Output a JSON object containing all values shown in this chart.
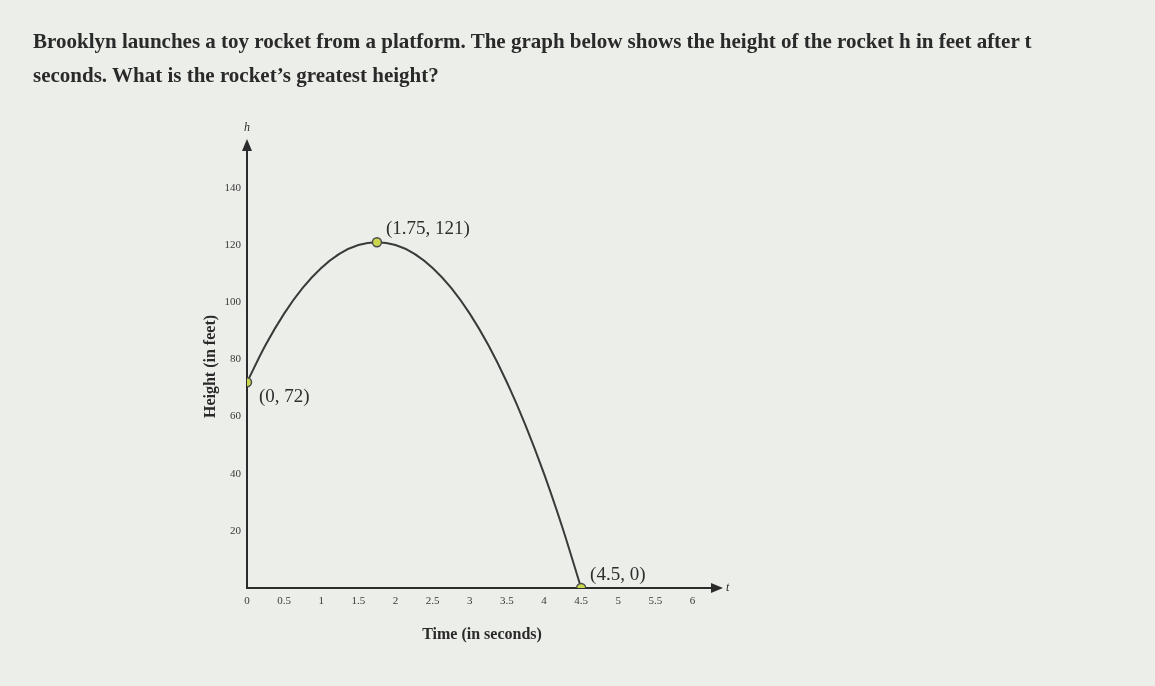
{
  "chart_data": {
    "type": "line",
    "title": "Brooklyn launches a toy rocket from a platform. The graph below shows the height of the rocket h in feet after t seconds. What is the rocket’s greatest height?",
    "xlabel": "Time (in seconds)",
    "ylabel": "Height (in feet)",
    "series": [
      {
        "type": "line",
        "color": "#3a3a3a",
        "marker": "none",
        "x": [
          0,
          0.25,
          0.5,
          0.75,
          1,
          1.25,
          1.5,
          1.75,
          2,
          2.25,
          2.5,
          2.75,
          3,
          3.25,
          3.5,
          3.75,
          4,
          4.25,
          4.5
        ],
        "values": [
          72,
          85,
          96,
          105,
          112,
          117,
          120,
          121,
          120,
          117,
          112,
          105,
          96,
          85,
          72,
          57,
          40,
          21,
          0
        ]
      },
      {
        "type": "scatter",
        "color": "#c9d64e",
        "marker": "circle",
        "x": [
          0,
          1.75,
          4.5
        ],
        "values": [
          72,
          121,
          0
        ]
      }
    ],
    "xlim": [
      0,
      6.33
    ],
    "ylim": [
      0,
      155
    ],
    "xticks": [
      0,
      0.5,
      1,
      1.5,
      2,
      2.5,
      3,
      3.5,
      4,
      4.5,
      5,
      5.5,
      6
    ],
    "yticks": [
      20,
      40,
      60,
      80,
      100,
      120,
      140
    ],
    "annotations": [
      {
        "text": "(0, 72)",
        "x": 0,
        "y": 72
      },
      {
        "text": "(1.75, 121)",
        "x": 1.75,
        "y": 121
      },
      {
        "text": "(4.5, 0)",
        "x": 4.5,
        "y": 0
      },
      {
        "text": "h",
        "x": 0,
        "y": 155
      },
      {
        "text": "t",
        "x": 6.33,
        "y": 0
      }
    ],
    "grid": false,
    "legend": false
  }
}
